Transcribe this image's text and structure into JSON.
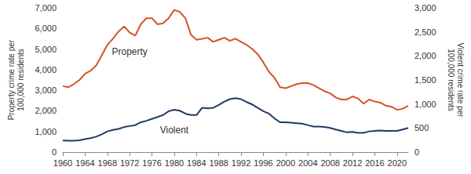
{
  "chart_data": {
    "type": "line",
    "y_label": "Property crime rate per\n100,000 residents",
    "y2_label": "Violent crime rate per\n100,000 residents",
    "x": [
      1960,
      1961,
      1962,
      1963,
      1964,
      1965,
      1966,
      1967,
      1968,
      1969,
      1970,
      1971,
      1972,
      1973,
      1974,
      1975,
      1976,
      1977,
      1978,
      1979,
      1980,
      1981,
      1982,
      1983,
      1984,
      1985,
      1986,
      1987,
      1988,
      1989,
      1990,
      1991,
      1992,
      1993,
      1994,
      1995,
      1996,
      1997,
      1998,
      1999,
      2000,
      2001,
      2002,
      2003,
      2004,
      2005,
      2006,
      2007,
      2008,
      2009,
      2010,
      2011,
      2012,
      2013,
      2014,
      2015,
      2016,
      2017,
      2018,
      2019,
      2020,
      2021,
      2022
    ],
    "series": [
      {
        "name": "Property",
        "color": "#d4532a",
        "values": [
          3200,
          3150,
          3300,
          3500,
          3800,
          3950,
          4200,
          4700,
          5200,
          5500,
          5850,
          6100,
          5800,
          5650,
          6200,
          6500,
          6500,
          6200,
          6250,
          6500,
          6900,
          6800,
          6500,
          5700,
          5450,
          5500,
          5550,
          5350,
          5450,
          5550,
          5400,
          5500,
          5350,
          5200,
          5000,
          4750,
          4350,
          3900,
          3600,
          3150,
          3100,
          3200,
          3300,
          3350,
          3350,
          3250,
          3100,
          2950,
          2850,
          2650,
          2550,
          2550,
          2700,
          2600,
          2350,
          2550,
          2450,
          2400,
          2250,
          2200,
          2050,
          2100,
          2250
        ]
      },
      {
        "name": "Violent",
        "color": "#1f3b63",
        "axis": "y2",
        "values": [
          240,
          235,
          235,
          245,
          270,
          290,
          320,
          370,
          430,
          460,
          480,
          520,
          540,
          560,
          620,
          650,
          690,
          730,
          770,
          850,
          880,
          860,
          800,
          770,
          770,
          920,
          910,
          920,
          980,
          1050,
          1100,
          1120,
          1100,
          1040,
          990,
          920,
          850,
          800,
          700,
          620,
          620,
          610,
          600,
          590,
          560,
          530,
          530,
          520,
          500,
          470,
          440,
          410,
          420,
          400,
          400,
          430,
          440,
          450,
          440,
          440,
          440,
          470,
          500
        ]
      }
    ],
    "xlim": [
      1960,
      2022
    ],
    "xticks": [
      1960,
      1964,
      1968,
      1972,
      1976,
      1980,
      1984,
      1988,
      1992,
      1996,
      2000,
      2004,
      2008,
      2012,
      2016,
      2020
    ],
    "ylim": [
      0,
      7000
    ],
    "yticks": [
      0,
      {
        "value": 1000,
        "label": "1,000"
      },
      {
        "value": 2000,
        "label": "2,000"
      },
      {
        "value": 3000,
        "label": "3,000"
      },
      {
        "value": 4000,
        "label": "4,000"
      },
      {
        "value": 5000,
        "label": "5,000"
      },
      {
        "value": 6000,
        "label": "6,000"
      },
      {
        "value": 7000,
        "label": "7,000"
      }
    ],
    "y2lim": [
      0,
      3000
    ],
    "y2ticks": [
      0,
      500,
      {
        "value": 1000,
        "label": "1,000"
      },
      {
        "value": 1500,
        "label": "1,500"
      },
      {
        "value": 2000,
        "label": "2,000"
      },
      {
        "value": 2500,
        "label": "2,500"
      },
      {
        "value": 3000,
        "label": "3,000"
      }
    ],
    "grid": false
  }
}
